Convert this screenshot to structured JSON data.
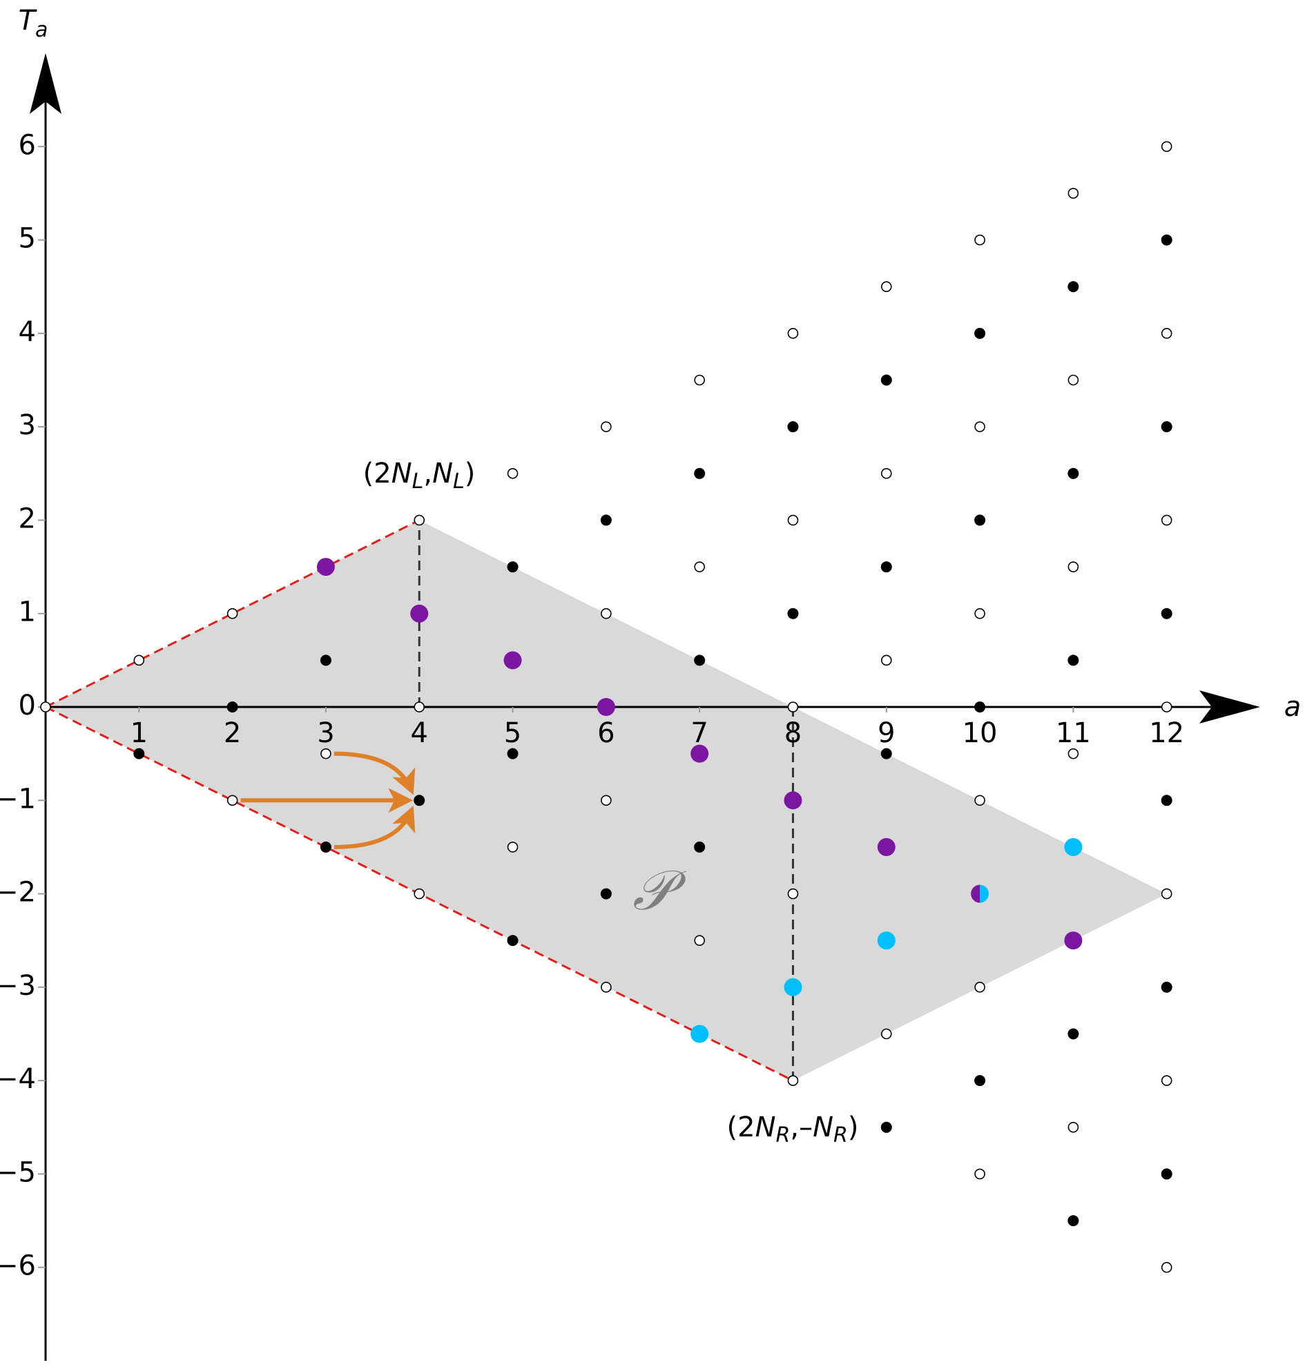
{
  "chart_data": {
    "type": "scatter",
    "xlabel": "a",
    "ylabel": [
      "T",
      "a"
    ],
    "xlim": [
      0,
      13
    ],
    "ylim": [
      -7,
      7
    ],
    "xticks": [
      1,
      2,
      3,
      4,
      5,
      6,
      7,
      8,
      9,
      10,
      11,
      12
    ],
    "yticks": [
      {
        "value": -6,
        "label": "−6"
      },
      {
        "value": -5,
        "label": "−5"
      },
      {
        "value": -4,
        "label": "−4"
      },
      {
        "value": -3,
        "label": "−3"
      },
      {
        "value": -2,
        "label": "−2"
      },
      {
        "value": -1,
        "label": "−1"
      },
      0,
      1,
      2,
      3,
      4,
      5,
      6
    ],
    "grid": false,
    "polygon": {
      "color": "#d9d9d9",
      "x": [
        0,
        4,
        12,
        8
      ],
      "y": [
        0,
        2,
        -2,
        -4
      ]
    },
    "guides": [
      {
        "color": "#e0201c",
        "x": [
          0,
          4
        ],
        "y": [
          0,
          2
        ]
      },
      {
        "color": "#e0201c",
        "x": [
          0,
          8
        ],
        "y": [
          0,
          -4
        ]
      },
      {
        "color": "#333333",
        "x": [
          4,
          4
        ],
        "y": [
          0,
          2
        ]
      },
      {
        "color": "#333333",
        "x": [
          8,
          8
        ],
        "y": [
          0,
          -4
        ]
      }
    ],
    "series": [
      {
        "color": "#000000",
        "filled": false,
        "x": [
          0,
          1,
          2,
          2,
          3,
          4,
          4,
          4,
          5,
          5,
          6,
          6,
          6,
          6,
          7,
          7,
          7,
          8,
          8,
          8,
          8,
          8,
          9,
          9,
          9,
          9,
          10,
          10,
          10,
          10,
          10,
          10,
          11,
          11,
          11,
          11,
          11,
          12,
          12,
          12,
          12,
          12,
          12,
          12
        ],
        "values": [
          0,
          0.5,
          1,
          -1,
          -0.5,
          2,
          0,
          -2,
          2.5,
          -1.5,
          3,
          1,
          -1,
          -3,
          3.5,
          1.5,
          -2.5,
          4,
          2,
          0,
          -2,
          -4,
          4.5,
          2.5,
          0.5,
          -3.5,
          5,
          3,
          1,
          -1,
          -3,
          -5,
          5.5,
          3.5,
          1.5,
          -0.5,
          -4.5,
          6,
          4,
          2,
          0,
          -2,
          -4,
          -6
        ]
      },
      {
        "color": "#000000",
        "filled": true,
        "x": [
          1,
          2,
          3,
          3,
          4,
          5,
          5,
          5,
          6,
          6,
          7,
          7,
          7,
          8,
          8,
          9,
          9,
          9,
          9,
          10,
          10,
          10,
          10,
          11,
          11,
          11,
          11,
          11,
          12,
          12,
          12,
          12,
          12,
          12
        ],
        "values": [
          -0.5,
          0,
          0.5,
          -1.5,
          -1,
          1.5,
          -0.5,
          -2.5,
          2,
          -2,
          2.5,
          0.5,
          -1.5,
          3,
          1,
          3.5,
          1.5,
          -0.5,
          -4.5,
          4,
          2,
          0,
          -4,
          4.5,
          2.5,
          0.5,
          -3.5,
          -5.5,
          5,
          3,
          1,
          -1,
          -3,
          -5
        ]
      },
      {
        "color": "#7b16a0",
        "filled": true,
        "x": [
          3,
          4,
          5,
          6,
          7,
          8,
          9,
          11
        ],
        "values": [
          1.5,
          1,
          0.5,
          0,
          -0.5,
          -1,
          -1.5,
          -2.5
        ]
      },
      {
        "color": "#00bfff",
        "filled": true,
        "x": [
          7,
          8,
          9,
          11
        ],
        "values": [
          -3.5,
          -3,
          -2.5,
          -1.5
        ]
      },
      {
        "colors": [
          "#7b16a0",
          "#00bfff"
        ],
        "filled": "half",
        "x": [
          10
        ],
        "values": [
          -2
        ]
      }
    ],
    "arrows": {
      "color": "#dd8027",
      "from": [
        [
          3,
          -0.5
        ],
        [
          2,
          -1
        ],
        [
          3,
          -1.5
        ]
      ],
      "to": [
        4,
        -1
      ]
    },
    "annotations": [
      {
        "parts": [
          "(2",
          "N",
          "L",
          ",",
          "N",
          "L",
          ")"
        ]
      },
      {
        "parts": [
          "(2",
          "N",
          "R",
          ",–",
          "N",
          "R",
          ")"
        ]
      },
      {
        "text": "𝒫"
      }
    ]
  }
}
